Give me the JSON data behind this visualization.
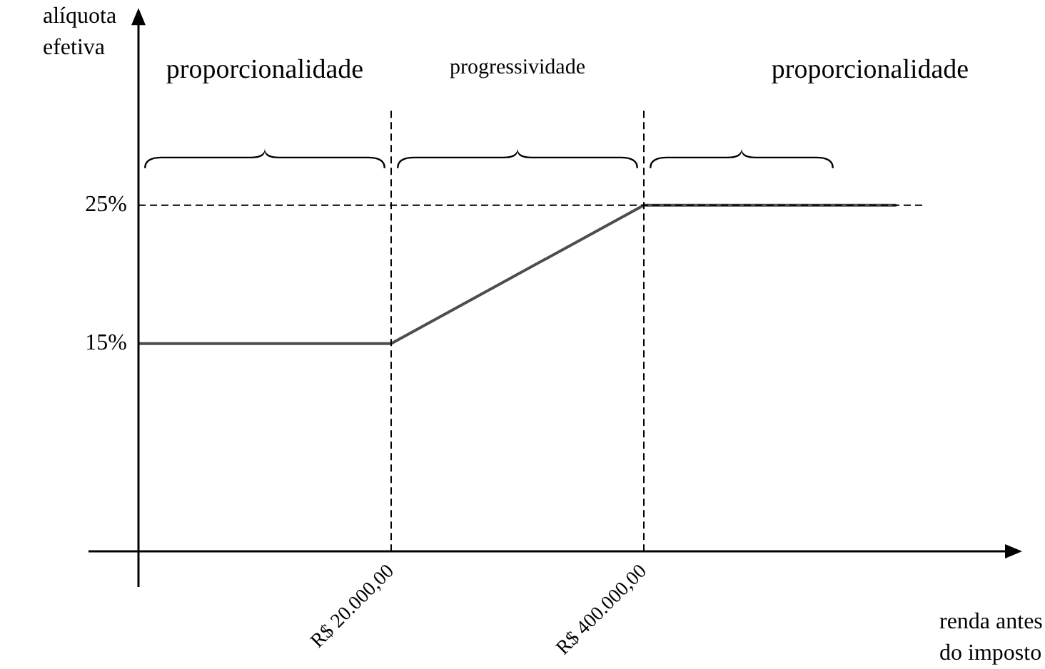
{
  "chart_data": {
    "type": "line",
    "xlabel": "renda antes do imposto",
    "ylabel": "alíquota efetiva",
    "categories": [
      null,
      "R$ 20.000,00",
      "R$ 400.000,00",
      null
    ],
    "series": [
      {
        "color": "#4d4d4d",
        "values": [
          15,
          15,
          25,
          25
        ]
      }
    ],
    "ylim": [
      0,
      38
    ],
    "yticks": [
      {
        "value": 15,
        "label": "15%"
      },
      {
        "value": 25,
        "label": "25%"
      }
    ],
    "ref_lines": [
      {
        "axis": "y",
        "value": 25,
        "line_style": "dashed",
        "color": "#000000"
      },
      {
        "axis": "x",
        "value": "R$ 20.000,00",
        "line_style": "dashed",
        "color": "#000000"
      },
      {
        "axis": "x",
        "value": "R$ 400.000,00",
        "line_style": "dashed",
        "color": "#000000"
      }
    ],
    "annotations": [
      "proporcionalidade",
      "progressividade",
      "proporcionalidade"
    ],
    "grid": false,
    "legend": false,
    "marker": "none",
    "line_style": "solid"
  }
}
